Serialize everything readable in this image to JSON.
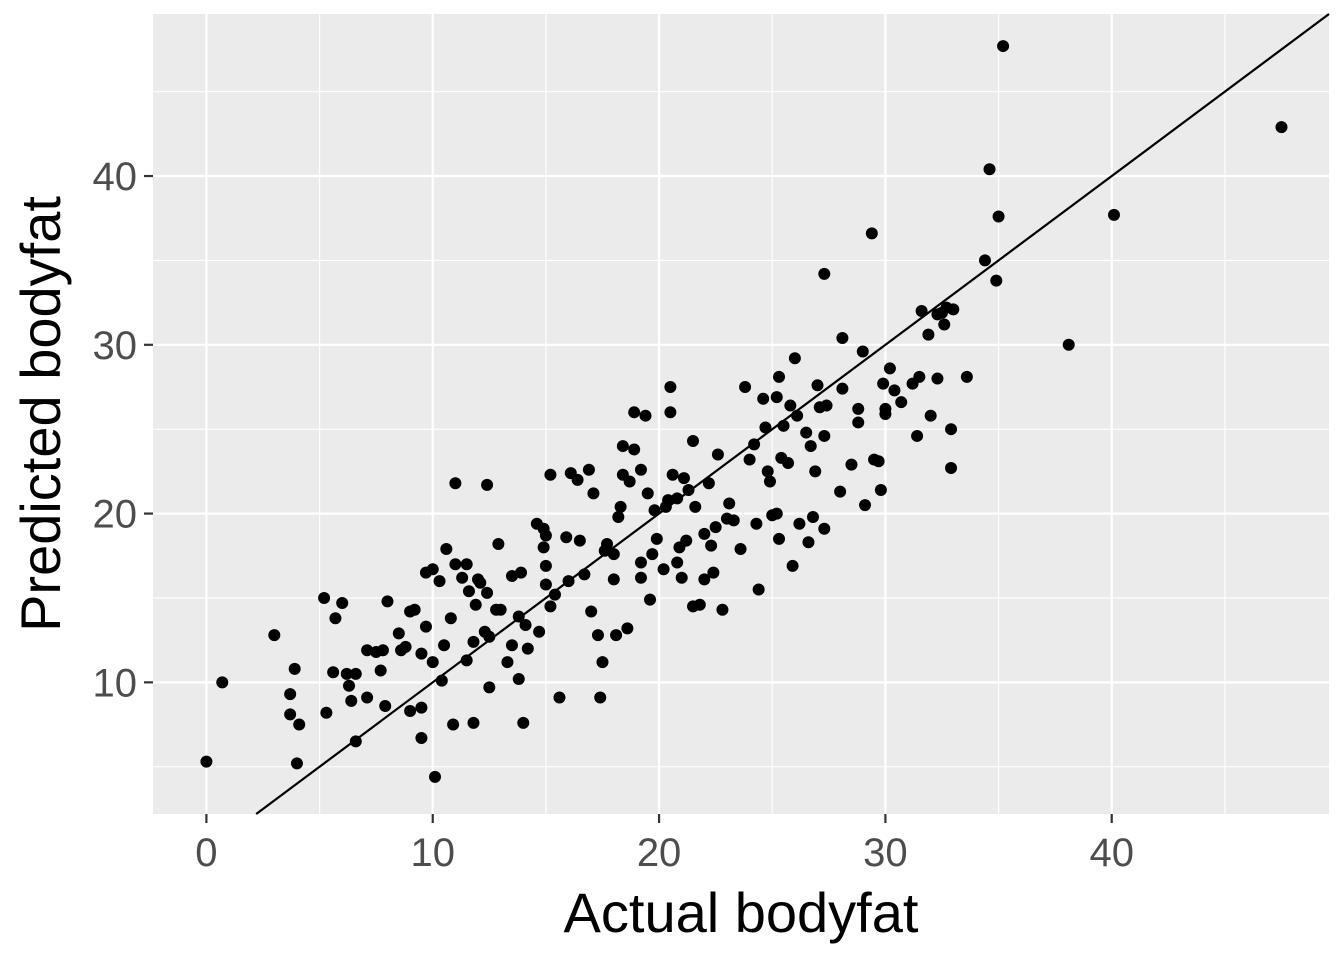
{
  "chart_data": {
    "type": "scatter",
    "title": "",
    "xlabel": "Actual bodyfat",
    "ylabel": "Predicted bodyfat",
    "xlim": [
      -2.36,
      49.6
    ],
    "ylim": [
      2.2,
      49.6
    ],
    "x_ticks": [
      0,
      10,
      20,
      30,
      40
    ],
    "y_ticks": [
      10,
      20,
      30,
      40
    ],
    "x_minor": [
      5,
      15,
      25,
      35,
      45
    ],
    "y_minor": [
      5,
      15,
      25,
      35,
      45
    ],
    "grid": true,
    "reference_line": {
      "slope": 1,
      "intercept": 0
    },
    "colors": {
      "panel": "#ebebeb",
      "grid": "#ffffff",
      "point": "#000000",
      "line": "#000000",
      "tick": "#333333"
    },
    "points": [
      [
        0.0,
        5.3
      ],
      [
        0.7,
        10.0
      ],
      [
        3.0,
        12.8
      ],
      [
        3.7,
        9.3
      ],
      [
        3.7,
        8.1
      ],
      [
        3.9,
        10.8
      ],
      [
        4.0,
        5.2
      ],
      [
        4.1,
        7.5
      ],
      [
        5.2,
        15.0
      ],
      [
        5.3,
        8.2
      ],
      [
        5.6,
        10.6
      ],
      [
        5.7,
        13.8
      ],
      [
        6.0,
        14.7
      ],
      [
        6.2,
        10.5
      ],
      [
        6.3,
        9.8
      ],
      [
        6.4,
        8.9
      ],
      [
        6.6,
        10.5
      ],
      [
        6.6,
        6.5
      ],
      [
        7.1,
        9.1
      ],
      [
        7.1,
        11.9
      ],
      [
        7.5,
        11.8
      ],
      [
        7.7,
        10.7
      ],
      [
        7.8,
        11.9
      ],
      [
        7.9,
        8.6
      ],
      [
        8.0,
        14.8
      ],
      [
        8.5,
        12.9
      ],
      [
        8.6,
        11.9
      ],
      [
        8.8,
        12.1
      ],
      [
        9.0,
        14.2
      ],
      [
        9.0,
        8.3
      ],
      [
        9.2,
        14.3
      ],
      [
        9.5,
        11.7
      ],
      [
        9.5,
        8.5
      ],
      [
        9.5,
        6.7
      ],
      [
        9.7,
        13.3
      ],
      [
        9.7,
        16.5
      ],
      [
        10.0,
        16.7
      ],
      [
        10.0,
        11.2
      ],
      [
        10.1,
        4.4
      ],
      [
        10.3,
        16.0
      ],
      [
        10.4,
        10.1
      ],
      [
        10.5,
        12.2
      ],
      [
        10.6,
        17.9
      ],
      [
        10.8,
        13.8
      ],
      [
        10.9,
        7.5
      ],
      [
        11.0,
        21.8
      ],
      [
        11.0,
        17.0
      ],
      [
        11.3,
        16.2
      ],
      [
        11.5,
        11.3
      ],
      [
        11.5,
        17.0
      ],
      [
        11.6,
        15.4
      ],
      [
        11.8,
        12.4
      ],
      [
        11.8,
        7.6
      ],
      [
        11.9,
        14.6
      ],
      [
        12.0,
        16.1
      ],
      [
        12.1,
        15.9
      ],
      [
        12.3,
        13.0
      ],
      [
        12.4,
        15.3
      ],
      [
        12.4,
        21.7
      ],
      [
        12.5,
        9.7
      ],
      [
        12.5,
        12.7
      ],
      [
        12.8,
        14.3
      ],
      [
        12.9,
        18.2
      ],
      [
        13.0,
        14.3
      ],
      [
        13.3,
        11.2
      ],
      [
        13.5,
        12.2
      ],
      [
        13.5,
        16.3
      ],
      [
        13.8,
        10.2
      ],
      [
        13.8,
        13.9
      ],
      [
        13.9,
        16.5
      ],
      [
        14.0,
        7.6
      ],
      [
        14.1,
        13.4
      ],
      [
        14.2,
        12.0
      ],
      [
        14.6,
        19.4
      ],
      [
        14.7,
        13.0
      ],
      [
        14.9,
        19.1
      ],
      [
        14.9,
        18.0
      ],
      [
        15.0,
        18.7
      ],
      [
        15.0,
        16.9
      ],
      [
        15.0,
        15.8
      ],
      [
        15.2,
        14.5
      ],
      [
        15.2,
        22.3
      ],
      [
        15.4,
        15.2
      ],
      [
        15.6,
        9.1
      ],
      [
        15.9,
        18.6
      ],
      [
        16.0,
        16.0
      ],
      [
        16.1,
        22.4
      ],
      [
        16.4,
        22.0
      ],
      [
        16.5,
        18.4
      ],
      [
        16.7,
        16.4
      ],
      [
        16.9,
        22.6
      ],
      [
        17.0,
        14.2
      ],
      [
        17.1,
        21.2
      ],
      [
        17.3,
        12.8
      ],
      [
        17.4,
        9.1
      ],
      [
        17.5,
        11.2
      ],
      [
        17.6,
        17.8
      ],
      [
        17.7,
        18.2
      ],
      [
        18.0,
        17.6
      ],
      [
        18.0,
        16.1
      ],
      [
        18.1,
        12.8
      ],
      [
        18.2,
        19.8
      ],
      [
        18.3,
        20.4
      ],
      [
        18.4,
        24.0
      ],
      [
        18.4,
        22.3
      ],
      [
        18.6,
        13.2
      ],
      [
        18.7,
        21.9
      ],
      [
        18.9,
        26.0
      ],
      [
        18.9,
        23.8
      ],
      [
        19.2,
        22.6
      ],
      [
        19.2,
        17.1
      ],
      [
        19.2,
        16.2
      ],
      [
        19.4,
        25.8
      ],
      [
        19.5,
        21.2
      ],
      [
        19.6,
        14.9
      ],
      [
        19.7,
        17.6
      ],
      [
        19.8,
        20.2
      ],
      [
        19.9,
        18.5
      ],
      [
        20.2,
        16.7
      ],
      [
        20.3,
        20.4
      ],
      [
        20.4,
        20.8
      ],
      [
        20.5,
        27.5
      ],
      [
        20.5,
        26.0
      ],
      [
        20.6,
        22.3
      ],
      [
        20.8,
        17.1
      ],
      [
        20.8,
        20.9
      ],
      [
        20.9,
        18.0
      ],
      [
        21.0,
        16.2
      ],
      [
        21.1,
        22.1
      ],
      [
        21.2,
        18.4
      ],
      [
        21.3,
        21.4
      ],
      [
        21.5,
        24.3
      ],
      [
        21.5,
        14.5
      ],
      [
        21.6,
        20.4
      ],
      [
        21.8,
        14.6
      ],
      [
        22.0,
        18.8
      ],
      [
        22.0,
        16.1
      ],
      [
        22.2,
        21.8
      ],
      [
        22.3,
        18.1
      ],
      [
        22.4,
        16.5
      ],
      [
        22.5,
        19.2
      ],
      [
        22.6,
        23.5
      ],
      [
        22.8,
        14.3
      ],
      [
        23.0,
        19.7
      ],
      [
        23.1,
        20.6
      ],
      [
        23.3,
        19.6
      ],
      [
        23.6,
        17.9
      ],
      [
        23.8,
        27.5
      ],
      [
        24.0,
        23.2
      ],
      [
        24.2,
        24.1
      ],
      [
        24.3,
        19.4
      ],
      [
        24.4,
        15.5
      ],
      [
        24.6,
        26.8
      ],
      [
        24.7,
        25.1
      ],
      [
        24.8,
        22.5
      ],
      [
        24.9,
        21.9
      ],
      [
        25.0,
        19.9
      ],
      [
        25.2,
        20.0
      ],
      [
        25.2,
        26.9
      ],
      [
        25.3,
        28.1
      ],
      [
        25.3,
        18.5
      ],
      [
        25.4,
        23.3
      ],
      [
        25.5,
        25.2
      ],
      [
        25.7,
        23.0
      ],
      [
        25.8,
        26.4
      ],
      [
        25.9,
        16.9
      ],
      [
        26.0,
        29.2
      ],
      [
        26.1,
        25.8
      ],
      [
        26.2,
        19.4
      ],
      [
        26.5,
        24.8
      ],
      [
        26.6,
        18.3
      ],
      [
        26.7,
        24.0
      ],
      [
        26.8,
        19.8
      ],
      [
        26.9,
        22.5
      ],
      [
        27.0,
        27.6
      ],
      [
        27.1,
        26.3
      ],
      [
        27.3,
        34.2
      ],
      [
        27.3,
        24.6
      ],
      [
        27.3,
        19.1
      ],
      [
        27.4,
        26.4
      ],
      [
        28.0,
        21.3
      ],
      [
        28.1,
        27.4
      ],
      [
        28.1,
        30.4
      ],
      [
        28.5,
        22.9
      ],
      [
        28.8,
        26.2
      ],
      [
        28.8,
        25.4
      ],
      [
        29.0,
        29.6
      ],
      [
        29.1,
        20.5
      ],
      [
        29.4,
        36.6
      ],
      [
        29.5,
        23.2
      ],
      [
        29.7,
        23.1
      ],
      [
        29.8,
        21.4
      ],
      [
        29.9,
        27.7
      ],
      [
        30.0,
        25.9
      ],
      [
        30.0,
        26.2
      ],
      [
        30.2,
        28.6
      ],
      [
        30.4,
        27.3
      ],
      [
        30.7,
        26.6
      ],
      [
        31.2,
        27.7
      ],
      [
        31.4,
        24.6
      ],
      [
        31.5,
        28.1
      ],
      [
        31.6,
        32.0
      ],
      [
        31.9,
        30.6
      ],
      [
        32.0,
        25.8
      ],
      [
        32.3,
        28.0
      ],
      [
        32.3,
        31.8
      ],
      [
        32.5,
        31.9
      ],
      [
        32.6,
        31.2
      ],
      [
        32.7,
        32.2
      ],
      [
        32.9,
        25.0
      ],
      [
        32.9,
        22.7
      ],
      [
        33.0,
        32.1
      ],
      [
        33.6,
        28.1
      ],
      [
        34.4,
        35.0
      ],
      [
        34.6,
        40.4
      ],
      [
        34.9,
        33.8
      ],
      [
        35.0,
        37.6
      ],
      [
        35.2,
        47.7
      ],
      [
        38.1,
        30.0
      ],
      [
        40.1,
        37.7
      ],
      [
        47.5,
        42.9
      ]
    ]
  }
}
